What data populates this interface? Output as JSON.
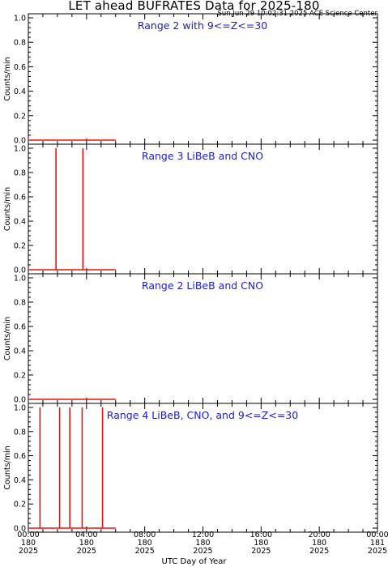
{
  "title": "LET ahead BUFRATES Data for 2025-180",
  "timestamp": "Sun Jun 29 10:02:31 2025 ACE Science Center",
  "xlabel": "UTC Day of Year",
  "colors": {
    "data": "#ee1111",
    "panel_title": "#1a1adc",
    "axes": "#000000"
  },
  "chart_data": [
    {
      "type": "line",
      "panel_title": "Range 2 with 9<=Z<=30",
      "ylabel": "Counts/min",
      "ylim": [
        0,
        1
      ],
      "yticks": [
        "0.0",
        "0.2",
        "0.4",
        "0.6",
        "0.8",
        "1.0"
      ],
      "xlim_hours": [
        0,
        24
      ],
      "data_end_hours": 6,
      "spikes_hours": [],
      "spike_value": 1
    },
    {
      "type": "line",
      "panel_title": "Range 3 LiBeB and CNO",
      "ylabel": "Counts/min",
      "ylim": [
        0,
        1
      ],
      "yticks": [
        "0.0",
        "0.2",
        "0.4",
        "0.6",
        "0.8",
        "1.0"
      ],
      "xlim_hours": [
        0,
        24
      ],
      "data_end_hours": 6,
      "spikes_hours": [
        1.9,
        3.75
      ],
      "spike_value": 1
    },
    {
      "type": "line",
      "panel_title": "Range 2 LiBeB and CNO",
      "ylabel": "Counts/min",
      "ylim": [
        0,
        1
      ],
      "yticks": [
        "0.0",
        "0.2",
        "0.4",
        "0.6",
        "0.8",
        "1.0"
      ],
      "xlim_hours": [
        0,
        24
      ],
      "data_end_hours": 6,
      "spikes_hours": [],
      "spike_value": 1
    },
    {
      "type": "line",
      "panel_title": "Range 4 LiBeB, CNO, and 9<=Z<=30",
      "ylabel": "Counts/min",
      "ylim": [
        0,
        1
      ],
      "yticks": [
        "0.0",
        "0.2",
        "0.4",
        "0.6",
        "0.8",
        "1.0"
      ],
      "xlim_hours": [
        0,
        24
      ],
      "data_end_hours": 6,
      "spikes_hours": [
        0.8,
        2.15,
        2.85,
        3.7,
        5.1
      ],
      "spike_value": 1
    }
  ],
  "x_axis": {
    "ticks": [
      {
        "hour": 0,
        "time": "00:00",
        "doy": "180",
        "year": "2025"
      },
      {
        "hour": 4,
        "time": "04:00",
        "doy": "180",
        "year": "2025"
      },
      {
        "hour": 8,
        "time": "08:00",
        "doy": "180",
        "year": "2025"
      },
      {
        "hour": 12,
        "time": "12:00",
        "doy": "180",
        "year": "2025"
      },
      {
        "hour": 16,
        "time": "16:00",
        "doy": "180",
        "year": "2025"
      },
      {
        "hour": 20,
        "time": "20:00",
        "doy": "180",
        "year": "2025"
      },
      {
        "hour": 24,
        "time": "00:00",
        "doy": "181",
        "year": "2025"
      }
    ],
    "minor_per_major": 4
  }
}
